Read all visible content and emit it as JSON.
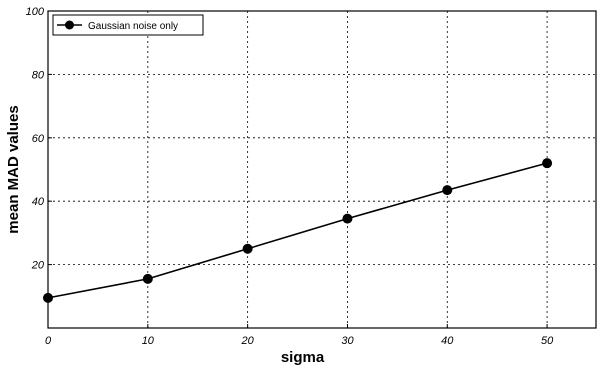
{
  "chart_data": {
    "type": "line",
    "x": [
      0,
      10,
      20,
      30,
      40,
      50
    ],
    "series": [
      {
        "name": "Gaussian noise only",
        "values": [
          9.5,
          15.5,
          25,
          34.5,
          43.5,
          52
        ]
      }
    ],
    "xlabel": "sigma",
    "ylabel": "mean MAD values",
    "xlim": [
      0,
      55
    ],
    "ylim": [
      0,
      100
    ],
    "xticks": [
      0,
      10,
      20,
      30,
      40,
      50
    ],
    "yticks": [
      20,
      40,
      60,
      80,
      100
    ],
    "xtick_labels": [
      "0",
      "10",
      "20",
      "30",
      "40",
      "50"
    ],
    "ytick_labels": [
      "20",
      "40",
      "60",
      "80",
      "100"
    ],
    "grid": true,
    "legend_position": "top-left",
    "line_color": "#000000",
    "marker": "filled-circle"
  }
}
